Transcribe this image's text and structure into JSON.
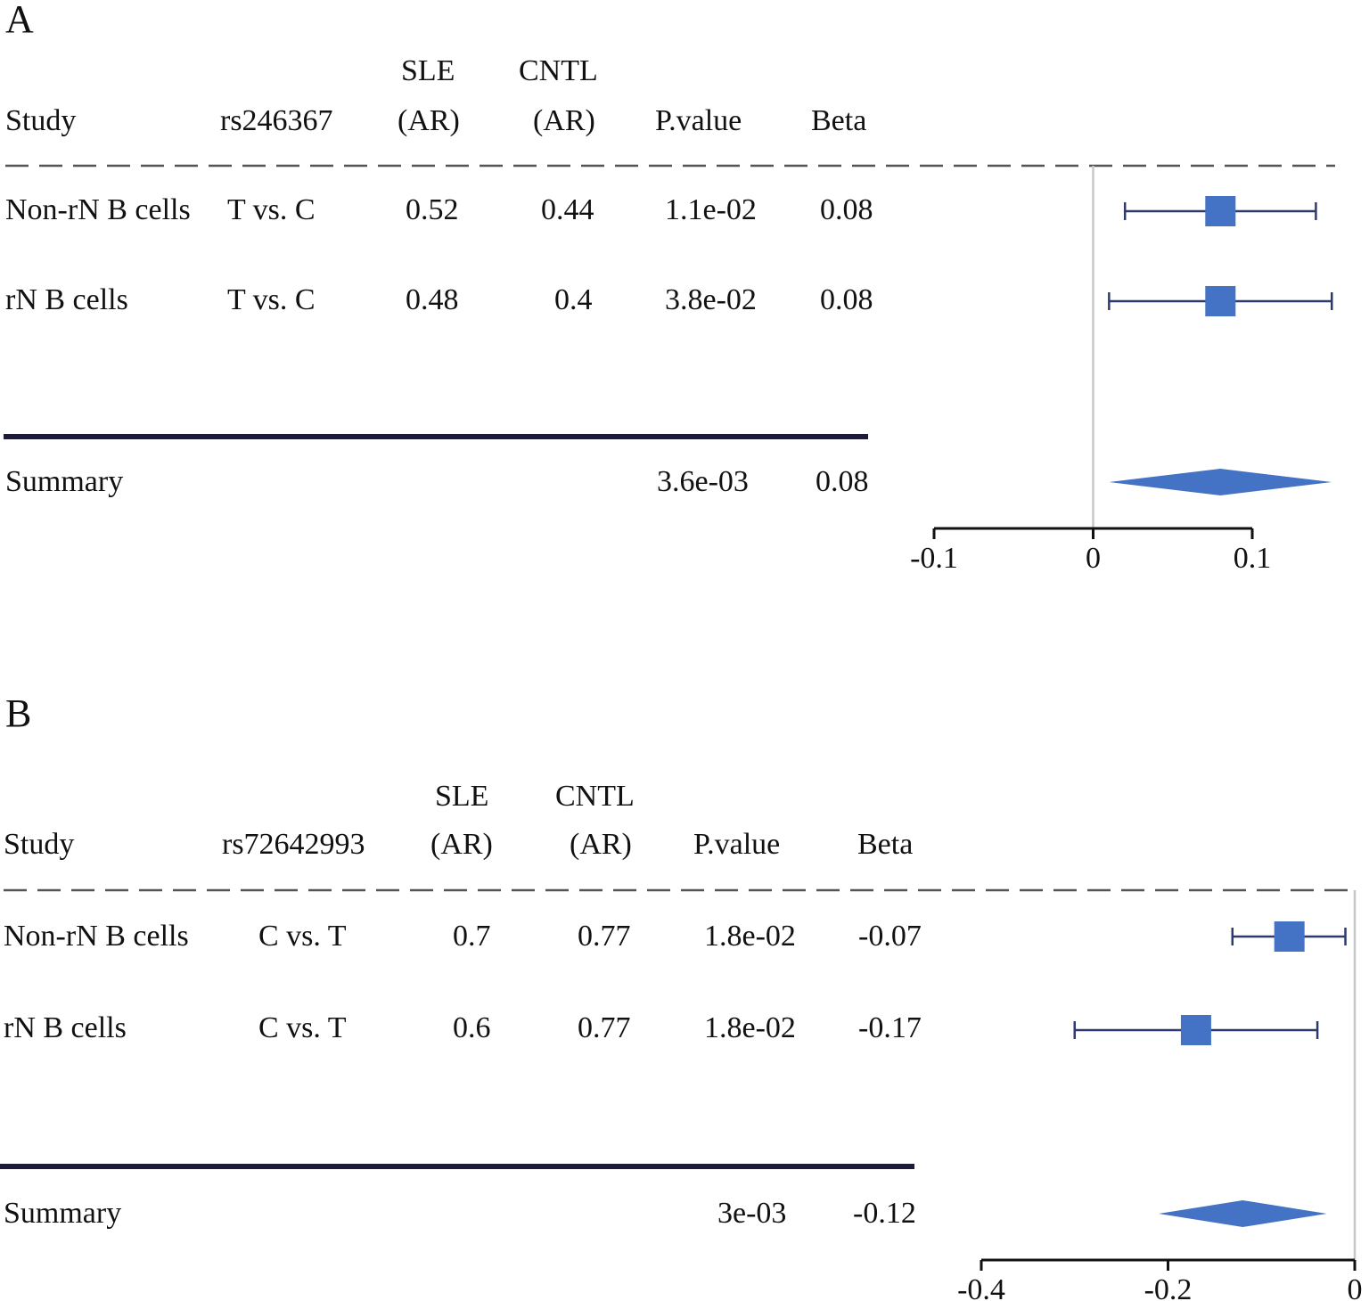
{
  "chart_data": [
    {
      "type": "forest",
      "panel_label": "A",
      "columns": {
        "study": "Study",
        "snp": "rs246367",
        "sle_top": "SLE",
        "sle_bottom": "(AR)",
        "cntl_top": "CNTL",
        "cntl_bottom": "(AR)",
        "pvalue": "P.value",
        "beta": "Beta"
      },
      "rows": [
        {
          "study": "Non-rN B cells",
          "snp": "T vs. C",
          "sle": "0.52",
          "cntl": "0.44",
          "pvalue": "1.1e-02",
          "beta": "0.08",
          "estimate": 0.08,
          "lower": 0.02,
          "upper": 0.14
        },
        {
          "study": "rN B cells",
          "snp": "T vs. C",
          "sle": "0.48",
          "cntl": "0.4",
          "pvalue": "3.8e-02",
          "beta": "0.08",
          "estimate": 0.08,
          "lower": 0.01,
          "upper": 0.15
        }
      ],
      "summary": {
        "study": "Summary",
        "pvalue": "3.6e-03",
        "beta": "0.08",
        "estimate": 0.08,
        "lower": 0.01,
        "upper": 0.15
      },
      "x_ticks": [
        {
          "value": -0.1,
          "label": "-0.1"
        },
        {
          "value": 0,
          "label": "0"
        },
        {
          "value": 0.1,
          "label": "0.1"
        }
      ],
      "xlim": [
        -0.1,
        0.1
      ],
      "reference_line": 0
    },
    {
      "type": "forest",
      "panel_label": "B",
      "columns": {
        "study": "Study",
        "snp": "rs72642993",
        "sle_top": "SLE",
        "sle_bottom": "(AR)",
        "cntl_top": "CNTL",
        "cntl_bottom": "(AR)",
        "pvalue": "P.value",
        "beta": "Beta"
      },
      "rows": [
        {
          "study": "Non-rN B cells",
          "snp": "C vs. T",
          "sle": "0.7",
          "cntl": "0.77",
          "pvalue": "1.8e-02",
          "beta": "-0.07",
          "estimate": -0.07,
          "lower": -0.131,
          "upper": -0.01
        },
        {
          "study": "rN B cells",
          "snp": "C vs. T",
          "sle": "0.6",
          "cntl": "0.77",
          "pvalue": "1.8e-02",
          "beta": "-0.17",
          "estimate": -0.17,
          "lower": -0.3,
          "upper": -0.04
        }
      ],
      "summary": {
        "study": "Summary",
        "pvalue": "3e-03",
        "beta": "-0.12",
        "estimate": -0.12,
        "lower": -0.21,
        "upper": -0.03
      },
      "x_ticks": [
        {
          "value": -0.4,
          "label": "-0.4"
        },
        {
          "value": -0.2,
          "label": "-0.2"
        },
        {
          "value": 0,
          "label": "0"
        }
      ],
      "xlim": [
        -0.4,
        0
      ],
      "reference_line": 0
    }
  ],
  "colors": {
    "marker": "#4472c4",
    "whisker": "#2e3a6e",
    "divider": "#1c1c3a",
    "dash": "#555555",
    "reference": "#c8c8c8",
    "axis": "#111111"
  }
}
